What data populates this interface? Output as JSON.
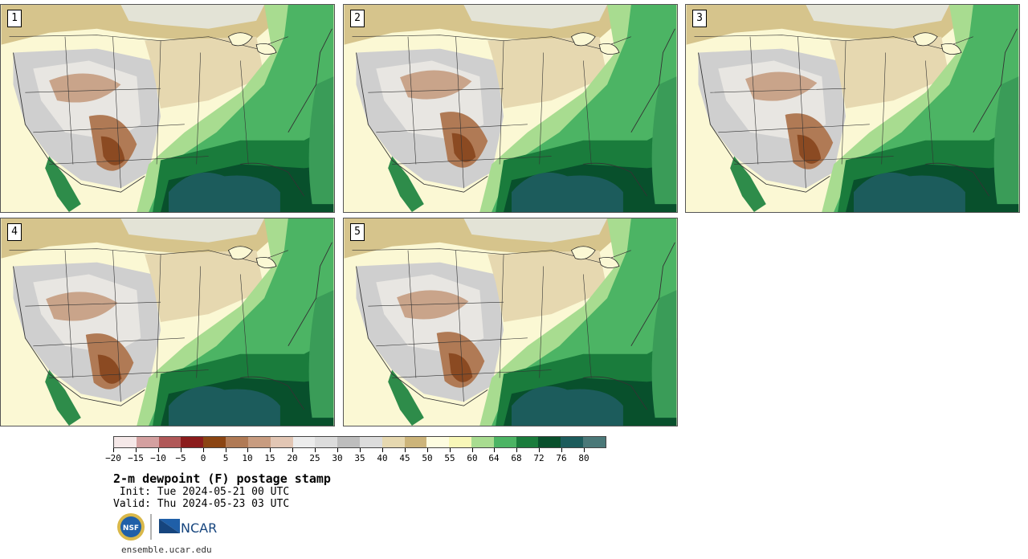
{
  "panels": [
    {
      "label": "1"
    },
    {
      "label": "2"
    },
    {
      "label": "3"
    },
    {
      "label": "4"
    },
    {
      "label": "5"
    }
  ],
  "colorbar": {
    "colors": [
      "#f5e8e8",
      "#d4a0a0",
      "#b05858",
      "#8b1c1c",
      "#8b4513",
      "#b07a55",
      "#c89c80",
      "#e2c6b4",
      "#ececec",
      "#dcdcdc",
      "#bdbdbd",
      "#dcdcdc",
      "#e6d8b0",
      "#ccb47a",
      "#fdfce0",
      "#f8f7b8",
      "#a8dc90",
      "#4cb464",
      "#1a7c3c",
      "#08502c",
      "#1c5c5c",
      "#4a7878"
    ],
    "tick_labels": [
      "−20",
      "−15",
      "−10",
      "−5",
      "0",
      "5",
      "10",
      "15",
      "20",
      "25",
      "30",
      "35",
      "40",
      "45",
      "50",
      "55",
      "60",
      "64",
      "68",
      "72",
      "76",
      "80"
    ]
  },
  "title": "2-m dewpoint (F) postage stamp",
  "init": " Init: Tue 2024-05-21 00 UTC",
  "valid": "Valid: Thu 2024-05-23 03 UTC",
  "logos": {
    "nsf": "NSF",
    "ncar": "NCAR"
  },
  "site": "ensemble.ucar.edu"
}
